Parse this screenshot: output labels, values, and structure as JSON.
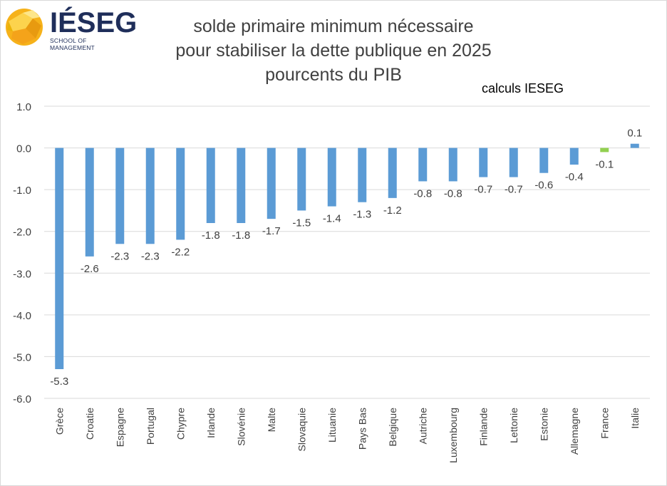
{
  "logo": {
    "brand": "IÉSEG",
    "tagline": "SCHOOL OF MANAGEMENT"
  },
  "title_lines": [
    "solde primaire minimum nécessaire",
    "pour stabiliser la dette publique en 2025",
    "pourcents du PIB"
  ],
  "note": "calculs IESEG",
  "colors": {
    "bar": "#5b9bd5",
    "highlight": "#92d050",
    "grid": "#d9d9d9",
    "text": "#404040"
  },
  "chart_data": {
    "type": "bar",
    "title": "solde primaire minimum nécessaire pour stabiliser la dette publique en 2025 pourcents du PIB",
    "categories": [
      "Grèce",
      "Croatie",
      "Espagne",
      "Portugal",
      "Chypre",
      "Irlande",
      "Slovénie",
      "Malte",
      "Slovaquie",
      "Lituanie",
      "Pays Bas",
      "Belgique",
      "Autriche",
      "Luxembourg",
      "Finlande",
      "Lettonie",
      "Estonie",
      "Allemagne",
      "France",
      "Italie"
    ],
    "values": [
      -5.3,
      -2.6,
      -2.3,
      -2.3,
      -2.2,
      -1.8,
      -1.8,
      -1.7,
      -1.5,
      -1.4,
      -1.3,
      -1.2,
      -0.8,
      -0.8,
      -0.7,
      -0.7,
      -0.6,
      -0.4,
      -0.1,
      0.1
    ],
    "highlight_category": "France",
    "ylim": [
      -6.0,
      1.0
    ],
    "yticks": [
      "1.0",
      "0.0",
      "-1.0",
      "-2.0",
      "-3.0",
      "-4.0",
      "-5.0",
      "-6.0"
    ],
    "grid": true,
    "xlabel": "",
    "ylabel": ""
  }
}
